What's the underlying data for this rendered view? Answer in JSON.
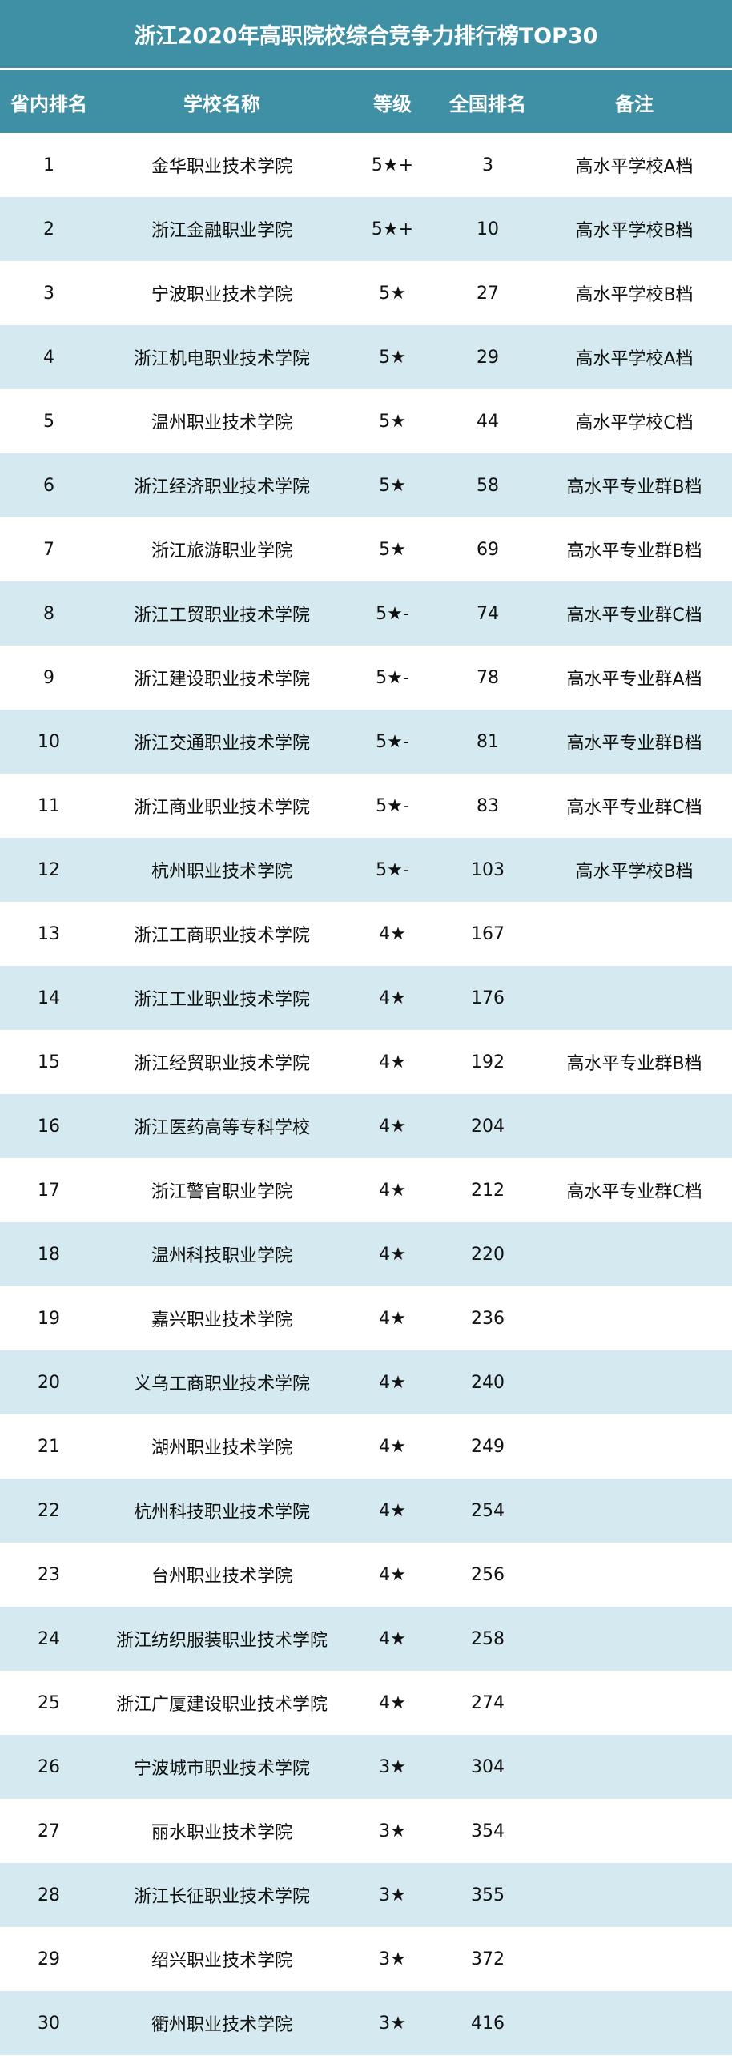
{
  "title": "浙江2020年高职院校综合竞争力排行榜TOP30",
  "colors": {
    "header_bg": "#3f90a4",
    "alt_row_bg": "#d5eaf0"
  },
  "columns": [
    "省内排名",
    "学校名称",
    "等级",
    "全国排名",
    "备注"
  ],
  "rows": [
    [
      "1",
      "金华职业技术学院",
      "5★+",
      "3",
      "高水平学校A档"
    ],
    [
      "2",
      "浙江金融职业学院",
      "5★+",
      "10",
      "高水平学校B档"
    ],
    [
      "3",
      "宁波职业技术学院",
      "5★",
      "27",
      "高水平学校B档"
    ],
    [
      "4",
      "浙江机电职业技术学院",
      "5★",
      "29",
      "高水平学校A档"
    ],
    [
      "5",
      "温州职业技术学院",
      "5★",
      "44",
      "高水平学校C档"
    ],
    [
      "6",
      "浙江经济职业技术学院",
      "5★",
      "58",
      "高水平专业群B档"
    ],
    [
      "7",
      "浙江旅游职业学院",
      "5★",
      "69",
      "高水平专业群B档"
    ],
    [
      "8",
      "浙江工贸职业技术学院",
      "5★-",
      "74",
      "高水平专业群C档"
    ],
    [
      "9",
      "浙江建设职业技术学院",
      "5★-",
      "78",
      "高水平专业群A档"
    ],
    [
      "10",
      "浙江交通职业技术学院",
      "5★-",
      "81",
      "高水平专业群B档"
    ],
    [
      "11",
      "浙江商业职业技术学院",
      "5★-",
      "83",
      "高水平专业群C档"
    ],
    [
      "12",
      "杭州职业技术学院",
      "5★-",
      "103",
      "高水平学校B档"
    ],
    [
      "13",
      "浙江工商职业技术学院",
      "4★",
      "167",
      ""
    ],
    [
      "14",
      "浙江工业职业技术学院",
      "4★",
      "176",
      ""
    ],
    [
      "15",
      "浙江经贸职业技术学院",
      "4★",
      "192",
      "高水平专业群B档"
    ],
    [
      "16",
      "浙江医药高等专科学校",
      "4★",
      "204",
      ""
    ],
    [
      "17",
      "浙江警官职业学院",
      "4★",
      "212",
      "高水平专业群C档"
    ],
    [
      "18",
      "温州科技职业学院",
      "4★",
      "220",
      ""
    ],
    [
      "19",
      "嘉兴职业技术学院",
      "4★",
      "236",
      ""
    ],
    [
      "20",
      "义乌工商职业技术学院",
      "4★",
      "240",
      ""
    ],
    [
      "21",
      "湖州职业技术学院",
      "4★",
      "249",
      ""
    ],
    [
      "22",
      "杭州科技职业技术学院",
      "4★",
      "254",
      ""
    ],
    [
      "23",
      "台州职业技术学院",
      "4★",
      "256",
      ""
    ],
    [
      "24",
      "浙江纺织服装职业技术学院",
      "4★",
      "258",
      ""
    ],
    [
      "25",
      "浙江广厦建设职业技术学院",
      "4★",
      "274",
      ""
    ],
    [
      "26",
      "宁波城市职业技术学院",
      "3★",
      "304",
      ""
    ],
    [
      "27",
      "丽水职业技术学院",
      "3★",
      "354",
      ""
    ],
    [
      "28",
      "浙江长征职业技术学院",
      "3★",
      "355",
      ""
    ],
    [
      "29",
      "绍兴职业技术学院",
      "3★",
      "372",
      ""
    ],
    [
      "30",
      "衢州职业技术学院",
      "3★",
      "416",
      ""
    ]
  ]
}
